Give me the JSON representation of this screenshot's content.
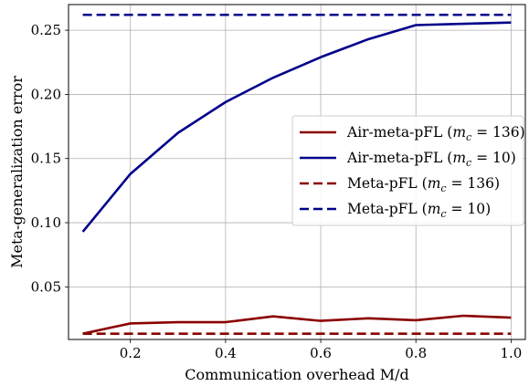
{
  "chart_data": {
    "type": "line",
    "xlabel": "Communication overhead M/d",
    "ylabel": "Meta-generalization error",
    "xlim": [
      0.07,
      1.03
    ],
    "ylim": [
      0.009,
      0.27
    ],
    "xticks": [
      "0.2",
      "0.4",
      "0.6",
      "0.8",
      "1.0"
    ],
    "yticks": [
      "0.05",
      "0.10",
      "0.15",
      "0.20",
      "0.25"
    ],
    "grid": true,
    "legend_position": "center-right",
    "x": [
      0.1,
      0.2,
      0.3,
      0.4,
      0.5,
      0.6,
      0.7,
      0.8,
      0.9,
      1.0
    ],
    "series": [
      {
        "name": "Air-meta-pFL (m_c = 136)",
        "legend_label": "Air-meta-pFL (",
        "legend_var": "m",
        "legend_sub": "c",
        "legend_rest": " = 136)",
        "color": "#8b0000",
        "dash": "solid",
        "values": [
          0.0135,
          0.0215,
          0.0225,
          0.0225,
          0.027,
          0.0235,
          0.0255,
          0.024,
          0.0275,
          0.026
        ]
      },
      {
        "name": "Air-meta-pFL (m_c = 10)",
        "legend_label": "Air-meta-pFL (",
        "legend_var": "m",
        "legend_sub": "c",
        "legend_rest": " = 10)",
        "color": "#00008b",
        "dash": "solid",
        "values": [
          0.093,
          0.138,
          0.17,
          0.194,
          0.213,
          0.229,
          0.243,
          0.254,
          0.255,
          0.256
        ]
      },
      {
        "name": "Meta-pFL (m_c = 136)",
        "legend_label": "Meta-pFL (",
        "legend_var": "m",
        "legend_sub": "c",
        "legend_rest": " = 136)",
        "color": "#8b0000",
        "dash": "dashed",
        "values": [
          0.0135,
          0.0135,
          0.0135,
          0.0135,
          0.0135,
          0.0135,
          0.0135,
          0.0135,
          0.0135,
          0.0135
        ]
      },
      {
        "name": "Meta-pFL (m_c = 10)",
        "legend_label": "Meta-pFL (",
        "legend_var": "m",
        "legend_sub": "c",
        "legend_rest": " = 10)",
        "color": "#00008b",
        "dash": "dashed",
        "values": [
          0.262,
          0.262,
          0.262,
          0.262,
          0.262,
          0.262,
          0.262,
          0.262,
          0.262,
          0.262
        ]
      }
    ]
  }
}
